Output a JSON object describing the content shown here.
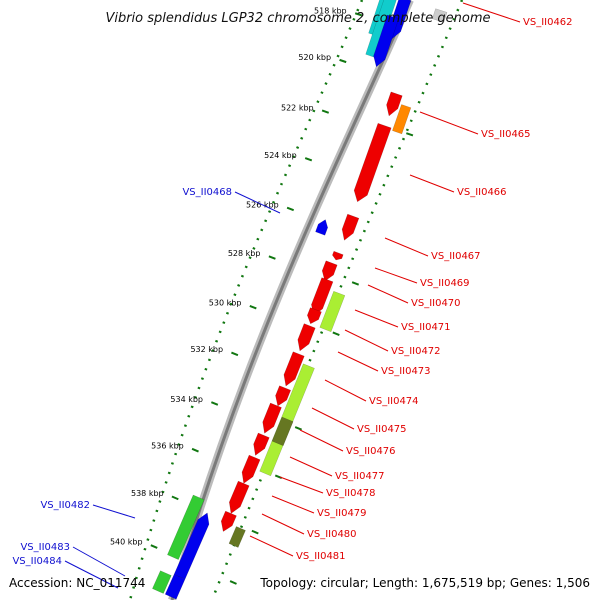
{
  "title": "Vibrio splendidus LGP32 chromosome 2, complete genome",
  "footer": {
    "accession": "Accession: NC_011744",
    "summary": "Topology: circular; Length: 1,675,519 bp; Genes: 1,506"
  },
  "colors": {
    "forward_gene": "#ee0000",
    "reverse_gene": "#0000ee",
    "light_green": "#aaee33",
    "green": "#33cc33",
    "orange": "#ff8800",
    "cyan": "#11cccc",
    "olive": "#667722",
    "backbone": "#888888",
    "dotted_ring": "#117711",
    "red_label": "#e00000",
    "blue_label": "#1010d0"
  },
  "kbp_ticks": [
    "518 kbp",
    "520 kbp",
    "522 kbp",
    "524 kbp",
    "526 kbp",
    "528 kbp",
    "530 kbp",
    "532 kbp",
    "534 kbp",
    "536 kbp",
    "538 kbp",
    "540 kbp"
  ],
  "gene_labels_right": [
    "VS_II0462",
    "VS_II0465",
    "VS_II0466",
    "VS_II0467",
    "VS_II0469",
    "VS_II0470",
    "VS_II0471",
    "VS_II0472",
    "VS_II0473",
    "VS_II0474",
    "VS_II0475",
    "VS_II0476",
    "VS_II0477",
    "VS_II0478",
    "VS_II0479",
    "VS_II0480",
    "VS_II0481"
  ],
  "gene_labels_left": [
    "VS_II0468",
    "VS_II0482",
    "VS_II0483",
    "VS_II0484"
  ]
}
